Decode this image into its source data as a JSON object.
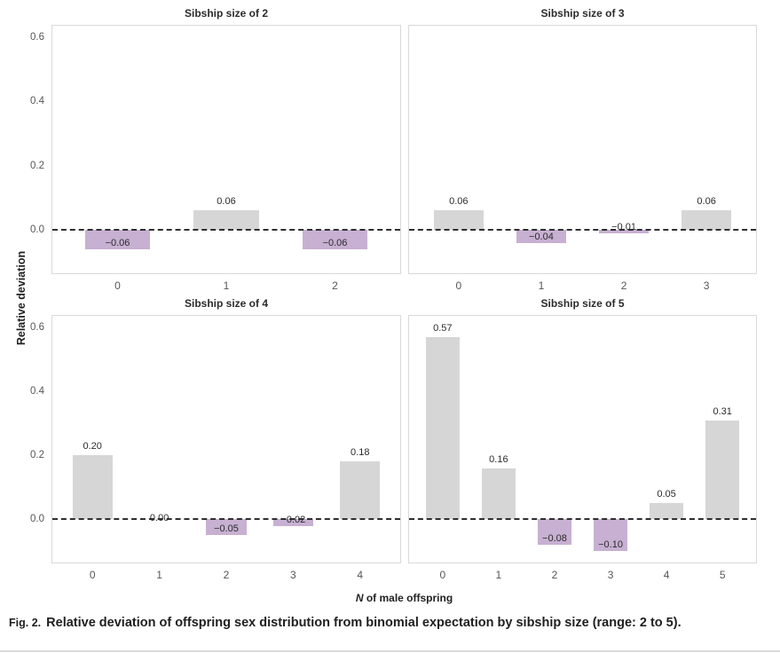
{
  "chart_data": {
    "type": "bar",
    "layout": "2x2 facets",
    "ylabel": "Relative deviation",
    "xlabel": "N of male offspring",
    "xlabel_italic_part": "N",
    "xlabel_regular_part": " of male offspring",
    "ylim": [
      -0.135,
      0.636
    ],
    "yticks": [
      0,
      0.2,
      0.4,
      0.6
    ],
    "ytick_labels": [
      "0.0",
      "0.2",
      "0.4",
      "0.6"
    ],
    "grid": "off",
    "legend": "none",
    "zero_line": {
      "style": "dashed",
      "color": "#2f2f2f"
    },
    "bar_colors": {
      "positive": "#d6d6d6",
      "negative": "#c7b0d2"
    },
    "bar_width_fraction": 0.6,
    "panels": [
      {
        "title": "Sibship size of 2",
        "categories": [
          "0",
          "1",
          "2"
        ],
        "values": [
          -0.06,
          0.06,
          -0.06
        ],
        "bar_labels": [
          "−0.06",
          "0.06",
          "−0.06"
        ]
      },
      {
        "title": "Sibship size of 3",
        "categories": [
          "0",
          "1",
          "2",
          "3"
        ],
        "values": [
          0.06,
          -0.04,
          -0.01,
          0.06
        ],
        "bar_labels": [
          "0.06",
          "−0.04",
          "−0.01",
          "0.06"
        ]
      },
      {
        "title": "Sibship size of 4",
        "categories": [
          "0",
          "1",
          "2",
          "3",
          "4"
        ],
        "values": [
          0.2,
          0,
          -0.05,
          -0.02,
          0.18
        ],
        "bar_labels": [
          "0.20",
          "0.00",
          "−0.05",
          "−0.02",
          "0.18"
        ]
      },
      {
        "title": "Sibship size of 5",
        "categories": [
          "0",
          "1",
          "2",
          "3",
          "4",
          "5"
        ],
        "values": [
          0.57,
          0.16,
          -0.08,
          -0.1,
          0.05,
          0.31
        ],
        "bar_labels": [
          "0.57",
          "0.16",
          "−0.08",
          "−0.10",
          "0.05",
          "0.31"
        ]
      }
    ]
  },
  "caption": {
    "prefix": "Fig. 2.",
    "text": "Relative deviation of offspring sex distribution from binomial expectation by sibship size (range: 2 to 5)."
  }
}
